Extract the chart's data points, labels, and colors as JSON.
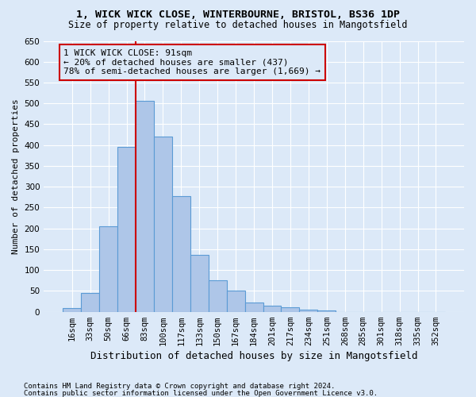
{
  "title1": "1, WICK WICK CLOSE, WINTERBOURNE, BRISTOL, BS36 1DP",
  "title2": "Size of property relative to detached houses in Mangotsfield",
  "xlabel": "Distribution of detached houses by size in Mangotsfield",
  "ylabel": "Number of detached properties",
  "bar_labels": [
    "16sqm",
    "33sqm",
    "50sqm",
    "66sqm",
    "83sqm",
    "100sqm",
    "117sqm",
    "133sqm",
    "150sqm",
    "167sqm",
    "184sqm",
    "201sqm",
    "217sqm",
    "234sqm",
    "251sqm",
    "268sqm",
    "285sqm",
    "301sqm",
    "318sqm",
    "335sqm",
    "352sqm"
  ],
  "bar_values": [
    8,
    45,
    205,
    395,
    507,
    420,
    278,
    137,
    75,
    50,
    22,
    15,
    10,
    5,
    3,
    0,
    0,
    0,
    0,
    0,
    0
  ],
  "bar_color": "#aec6e8",
  "bar_edge_color": "#5b9bd5",
  "vline_x": 3.5,
  "vline_color": "#cc0000",
  "annotation_text": "1 WICK WICK CLOSE: 91sqm\n← 20% of detached houses are smaller (437)\n78% of semi-detached houses are larger (1,669) →",
  "annotation_box_color": "#cc0000",
  "ylim": [
    0,
    650
  ],
  "yticks": [
    0,
    50,
    100,
    150,
    200,
    250,
    300,
    350,
    400,
    450,
    500,
    550,
    600,
    650
  ],
  "footer1": "Contains HM Land Registry data © Crown copyright and database right 2024.",
  "footer2": "Contains public sector information licensed under the Open Government Licence v3.0.",
  "bg_color": "#dce9f8",
  "grid_color": "#ffffff",
  "title1_fontsize": 9.5,
  "title2_fontsize": 8.5,
  "ylabel_fontsize": 8.0,
  "xlabel_fontsize": 9.0,
  "tick_fontsize": 7.5,
  "footer_fontsize": 6.5,
  "annot_fontsize": 8.0
}
